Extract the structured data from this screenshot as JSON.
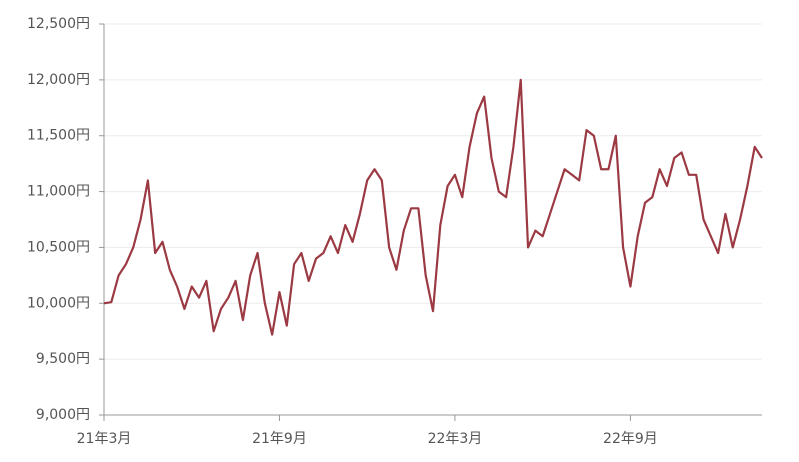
{
  "chart_data": {
    "type": "line",
    "categories": [
      "21年3月",
      null,
      null,
      null,
      null,
      null,
      null,
      null,
      null,
      null,
      null,
      null,
      null,
      null,
      null,
      null,
      null,
      null,
      null,
      null,
      null,
      null,
      null,
      null,
      "21年9月",
      null,
      null,
      null,
      null,
      null,
      null,
      null,
      null,
      null,
      null,
      null,
      null,
      null,
      null,
      null,
      null,
      null,
      null,
      null,
      null,
      null,
      null,
      null,
      "22年3月",
      null,
      null,
      null,
      null,
      null,
      null,
      null,
      null,
      null,
      null,
      null,
      null,
      null,
      null,
      null,
      null,
      null,
      null,
      null,
      null,
      null,
      null,
      null,
      "22年9月",
      null,
      null,
      null,
      null,
      null,
      null,
      null,
      null,
      null,
      null,
      null,
      null,
      null,
      null,
      null,
      null,
      null,
      null
    ],
    "values": [
      10000,
      10010,
      10250,
      10350,
      10500,
      10750,
      11100,
      10450,
      10550,
      10300,
      10150,
      9950,
      10150,
      10050,
      10200,
      9750,
      9950,
      10050,
      10200,
      9850,
      10250,
      10450,
      10000,
      9720,
      10100,
      9800,
      10350,
      10450,
      10200,
      10400,
      10450,
      10600,
      10450,
      10700,
      10550,
      10800,
      11100,
      11200,
      11100,
      10500,
      10300,
      10650,
      10850,
      10850,
      10250,
      9930,
      10700,
      11050,
      11150,
      10950,
      11400,
      11700,
      11850,
      11300,
      11000,
      10950,
      11400,
      12000,
      10500,
      10650,
      10600,
      10800,
      11000,
      11200,
      11150,
      11100,
      11550,
      11500,
      11200,
      11200,
      11500,
      10500,
      10150,
      10600,
      10900,
      10950,
      11200,
      11050,
      11300,
      11350,
      11150,
      11150,
      10750,
      10600,
      10450,
      10800,
      10500,
      10750,
      11050,
      11400,
      11300
    ],
    "color": "#9b3a43",
    "ylim": [
      9000,
      12500
    ],
    "yticks": [
      {
        "value": 9000,
        "label": "9,000円"
      },
      {
        "value": 9500,
        "label": "9,500円"
      },
      {
        "value": 10000,
        "label": "10,000円"
      },
      {
        "value": 10500,
        "label": "10,500円"
      },
      {
        "value": 11000,
        "label": "11,000円"
      },
      {
        "value": 11500,
        "label": "11,500円"
      },
      {
        "value": 12000,
        "label": "12,000円"
      },
      {
        "value": 12500,
        "label": "12,500円"
      }
    ],
    "grid": true
  }
}
